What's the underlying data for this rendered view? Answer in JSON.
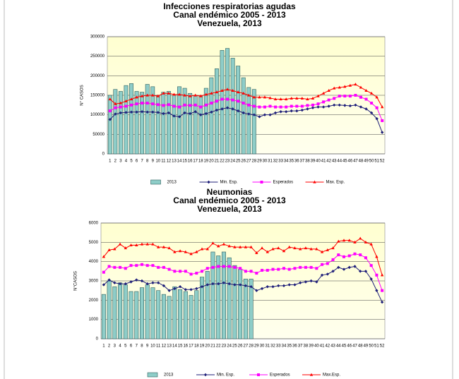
{
  "chart_data": [
    {
      "type": "combo",
      "title": "Infecciones respiratorias agudas",
      "subtitle": "Canal endémico 2005 - 2013",
      "location": "Venezuela, 2013",
      "ylabel": "N° CASOS",
      "ylim": [
        0,
        300000
      ],
      "yticks": [
        0,
        50000,
        100000,
        150000,
        200000,
        250000,
        300000
      ],
      "grid": true,
      "legend": "bottom",
      "categories": [
        "1",
        "2",
        "3",
        "4",
        "5",
        "6",
        "7",
        "8",
        "9",
        "10",
        "11",
        "12",
        "13",
        "14",
        "15",
        "16",
        "17",
        "18",
        "19",
        "20",
        "21",
        "22",
        "23",
        "24",
        "25",
        "26",
        "27",
        "28",
        "29",
        "30",
        "31",
        "32",
        "33",
        "34",
        "35",
        "36",
        "37",
        "38",
        "39",
        "40",
        "41",
        "42",
        "43",
        "44",
        "45",
        "46",
        "47",
        "48",
        "49",
        "50",
        "51",
        "52"
      ],
      "series": [
        {
          "name": "2013",
          "type": "bar",
          "color": "#8ecdc8",
          "values": [
            150000,
            165000,
            160000,
            175000,
            180000,
            160000,
            158000,
            178000,
            172000,
            150000,
            158000,
            160000,
            150000,
            172000,
            168000,
            155000,
            150000,
            148000,
            168000,
            195000,
            218000,
            265000,
            270000,
            245000,
            225000,
            195000,
            170000,
            165000,
            null,
            null,
            null,
            null,
            null,
            null,
            null,
            null,
            null,
            null,
            null,
            null,
            null,
            null,
            null,
            null,
            null,
            null,
            null,
            null,
            null,
            null,
            null,
            null
          ]
        },
        {
          "name": "Min. Esp.",
          "type": "line",
          "marker": "diamond",
          "color": "#1f1f7a",
          "values": [
            88000,
            102000,
            105000,
            106000,
            107000,
            107000,
            108000,
            107000,
            107000,
            106000,
            103000,
            105000,
            97000,
            95000,
            105000,
            103000,
            108000,
            100000,
            103000,
            107000,
            112000,
            115000,
            118000,
            115000,
            110000,
            105000,
            102000,
            100000,
            95000,
            100000,
            100000,
            105000,
            108000,
            108000,
            110000,
            110000,
            112000,
            115000,
            118000,
            120000,
            120000,
            122000,
            125000,
            125000,
            124000,
            123000,
            125000,
            120000,
            115000,
            105000,
            90000,
            55000
          ]
        },
        {
          "name": "Esperados",
          "type": "line",
          "marker": "square",
          "color": "#ff00ff",
          "values": [
            110000,
            118000,
            120000,
            122000,
            125000,
            128000,
            130000,
            130000,
            128000,
            126000,
            124000,
            126000,
            122000,
            120000,
            125000,
            124000,
            125000,
            120000,
            125000,
            130000,
            135000,
            140000,
            140000,
            138000,
            135000,
            130000,
            125000,
            122000,
            120000,
            120000,
            122000,
            120000,
            120000,
            120000,
            122000,
            122000,
            122000,
            124000,
            125000,
            128000,
            133000,
            138000,
            142000,
            148000,
            148000,
            148000,
            150000,
            145000,
            140000,
            130000,
            118000,
            85000
          ]
        },
        {
          "name": "Max. Esp.",
          "type": "line",
          "marker": "triangle",
          "color": "#ff0000",
          "values": [
            140000,
            128000,
            130000,
            135000,
            140000,
            145000,
            148000,
            150000,
            150000,
            148000,
            155000,
            155000,
            152000,
            152000,
            150000,
            148000,
            150000,
            148000,
            152000,
            155000,
            158000,
            162000,
            165000,
            162000,
            158000,
            155000,
            150000,
            145000,
            145000,
            145000,
            143000,
            140000,
            140000,
            140000,
            142000,
            142000,
            142000,
            140000,
            142000,
            148000,
            155000,
            162000,
            168000,
            170000,
            172000,
            175000,
            178000,
            170000,
            162000,
            155000,
            145000,
            120000
          ]
        }
      ]
    },
    {
      "type": "combo",
      "title": "Neumonias",
      "subtitle": "Canal endémico 2005 - 2013",
      "location": "Venezuela, 2013",
      "ylabel": "N°CASOS",
      "ylim": [
        0,
        6000
      ],
      "yticks": [
        0,
        1000,
        2000,
        3000,
        4000,
        5000,
        6000
      ],
      "grid": true,
      "legend": "bottom",
      "categories": [
        "1",
        "2",
        "3",
        "4",
        "5",
        "6",
        "7",
        "8",
        "9",
        "10",
        "11",
        "12",
        "13",
        "14",
        "15",
        "16",
        "17",
        "18",
        "19",
        "20",
        "21",
        "22",
        "23",
        "24",
        "25",
        "26",
        "27",
        "28",
        "29",
        "30",
        "31",
        "32",
        "33",
        "34",
        "35",
        "36",
        "37",
        "38",
        "39",
        "40",
        "41",
        "42",
        "43",
        "44",
        "45",
        "46",
        "47",
        "48",
        "49",
        "50",
        "51",
        "52"
      ],
      "series": [
        {
          "name": "2013",
          "type": "bar",
          "color": "#8ecdc8",
          "values": [
            2300,
            3000,
            2700,
            2900,
            2800,
            2450,
            2450,
            2650,
            2800,
            2650,
            2500,
            2300,
            2200,
            2700,
            2550,
            2450,
            2250,
            2500,
            3200,
            3500,
            4500,
            4300,
            4500,
            4200,
            3800,
            3600,
            3100,
            3100,
            null,
            null,
            null,
            null,
            null,
            null,
            null,
            null,
            null,
            null,
            null,
            null,
            null,
            null,
            null,
            null,
            null,
            null,
            null,
            null,
            null,
            null,
            null,
            null
          ]
        },
        {
          "name": "Min. Esp.",
          "type": "line",
          "marker": "diamond",
          "color": "#1f1f7a",
          "values": [
            2800,
            3050,
            2900,
            2850,
            2850,
            2950,
            3050,
            3000,
            2850,
            2900,
            2900,
            2750,
            2500,
            2600,
            2700,
            2550,
            2550,
            2600,
            2700,
            2800,
            2850,
            2850,
            2900,
            2850,
            2800,
            2800,
            2750,
            2700,
            2500,
            2600,
            2700,
            2700,
            2750,
            2750,
            2800,
            2800,
            2900,
            2950,
            3000,
            2950,
            3300,
            3350,
            3500,
            3700,
            3600,
            3700,
            3750,
            3500,
            3500,
            3100,
            2500,
            1900
          ]
        },
        {
          "name": "Esperados",
          "type": "line",
          "marker": "square",
          "color": "#ff00ff",
          "values": [
            3450,
            3750,
            3700,
            3700,
            3650,
            3800,
            3800,
            3850,
            3800,
            3800,
            3700,
            3700,
            3600,
            3500,
            3500,
            3500,
            3350,
            3400,
            3500,
            3650,
            3700,
            3750,
            3750,
            3750,
            3700,
            3650,
            3500,
            3500,
            3400,
            3550,
            3550,
            3600,
            3600,
            3650,
            3600,
            3650,
            3700,
            3700,
            3700,
            3650,
            3850,
            3900,
            4100,
            4350,
            4250,
            4300,
            4400,
            4350,
            4200,
            3800,
            3300,
            2500
          ]
        },
        {
          "name": "Max.Esp.",
          "type": "line",
          "marker": "triangle",
          "color": "#ff0000",
          "values": [
            4250,
            4600,
            4650,
            4900,
            4700,
            4850,
            4850,
            4900,
            4900,
            4900,
            4750,
            4750,
            4700,
            4500,
            4550,
            4500,
            4400,
            4500,
            4650,
            4650,
            4950,
            4800,
            4900,
            4800,
            4750,
            4750,
            4750,
            4750,
            4450,
            4700,
            4500,
            4650,
            4700,
            4550,
            4750,
            4700,
            4650,
            4700,
            4650,
            4650,
            4500,
            4600,
            4700,
            5050,
            5100,
            5100,
            5000,
            5200,
            5000,
            4900,
            4250,
            3300
          ]
        }
      ]
    }
  ]
}
